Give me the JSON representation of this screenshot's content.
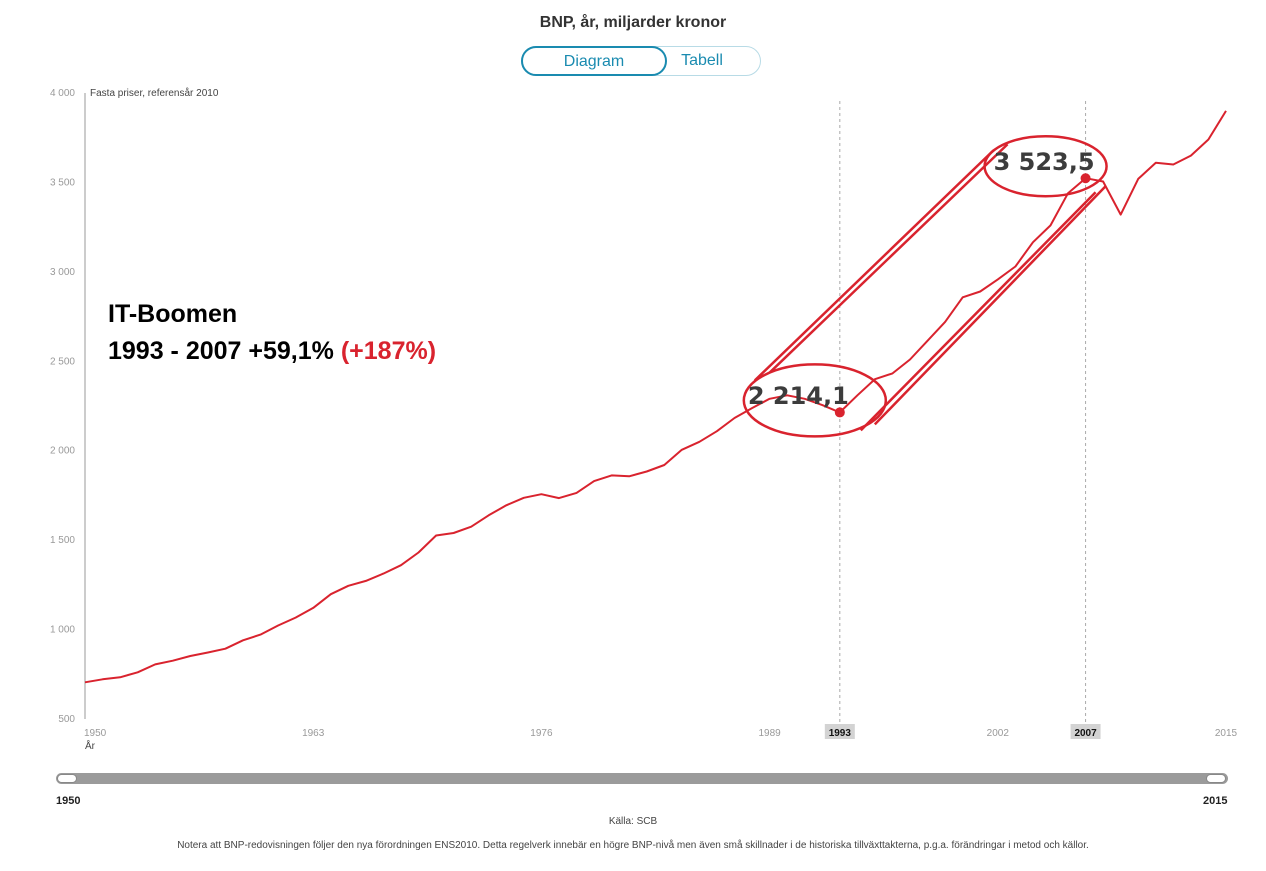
{
  "header": {
    "title": "BNP, år, miljarder kronor",
    "tabs": [
      {
        "label": "Diagram",
        "active": true
      },
      {
        "label": "Tabell",
        "active": false
      }
    ]
  },
  "chart_data": {
    "type": "line",
    "subtitle": "Fasta priser, referensår 2010",
    "xlabel": "År",
    "ylim": [
      500,
      4000
    ],
    "xlim": [
      1950,
      2015
    ],
    "y_ticks": [
      "500",
      "1 000",
      "1 500",
      "2 000",
      "2 500",
      "3 000",
      "3 500",
      "4 000"
    ],
    "y_tick_values": [
      500,
      1000,
      1500,
      2000,
      2500,
      3000,
      3500,
      4000
    ],
    "x_ticks": [
      "1950",
      "1963",
      "1976",
      "1989",
      "2002",
      "2015"
    ],
    "x_tick_values": [
      1950,
      1963,
      1976,
      1989,
      2002,
      2015
    ],
    "highlight_ticks": [
      "1993",
      "2007"
    ],
    "highlight_years": [
      1993,
      2007
    ],
    "series": [
      {
        "color": "#d9232e",
        "x": [
          1950,
          1951,
          1952,
          1953,
          1954,
          1955,
          1956,
          1957,
          1958,
          1959,
          1960,
          1961,
          1962,
          1963,
          1964,
          1965,
          1966,
          1967,
          1968,
          1969,
          1970,
          1971,
          1972,
          1973,
          1974,
          1975,
          1976,
          1977,
          1978,
          1979,
          1980,
          1981,
          1982,
          1983,
          1984,
          1985,
          1986,
          1987,
          1988,
          1989,
          1990,
          1991,
          1992,
          1993,
          1994,
          1995,
          1996,
          1997,
          1998,
          1999,
          2000,
          2001,
          2002,
          2003,
          2004,
          2005,
          2006,
          2007,
          2008,
          2009,
          2010,
          2011,
          2012,
          2013,
          2014,
          2015
        ],
        "y": [
          705,
          722,
          733,
          761,
          805,
          826,
          852,
          872,
          893,
          940,
          972,
          1023,
          1067,
          1121,
          1198,
          1245,
          1272,
          1313,
          1360,
          1431,
          1526,
          1540,
          1575,
          1639,
          1695,
          1737,
          1757,
          1735,
          1764,
          1830,
          1862,
          1857,
          1884,
          1920,
          2005,
          2050,
          2109,
          2183,
          2238,
          2290,
          2310,
          2290,
          2255,
          2214.1,
          2310,
          2400,
          2432,
          2510,
          2615,
          2720,
          2858,
          2890,
          2958,
          3030,
          3165,
          3260,
          3440,
          3523.5,
          3505,
          3320,
          3520,
          3610,
          3600,
          3650,
          3740,
          3900
        ]
      }
    ],
    "markers": [
      {
        "year": 1993,
        "value": 2214.1,
        "label": "2 214,1"
      },
      {
        "year": 2007,
        "value": 3523.5,
        "label": "3 523,5"
      }
    ]
  },
  "annotation": {
    "heading": "IT-Boomen",
    "period": "1993 - 2007 +59,1%",
    "highlight": "(+187%)",
    "color": "#d9232e"
  },
  "slider": {
    "start_label": "1950",
    "end_label": "2015"
  },
  "footer": {
    "source": "Källa: SCB",
    "note": "Notera att BNP-redovisningen följer den nya förordningen ENS2010. Detta regelverk innebär en högre BNP-nivå men även små skillnader i de historiska tillväxttakterna, p.g.a. förändringar i metod och källor."
  }
}
